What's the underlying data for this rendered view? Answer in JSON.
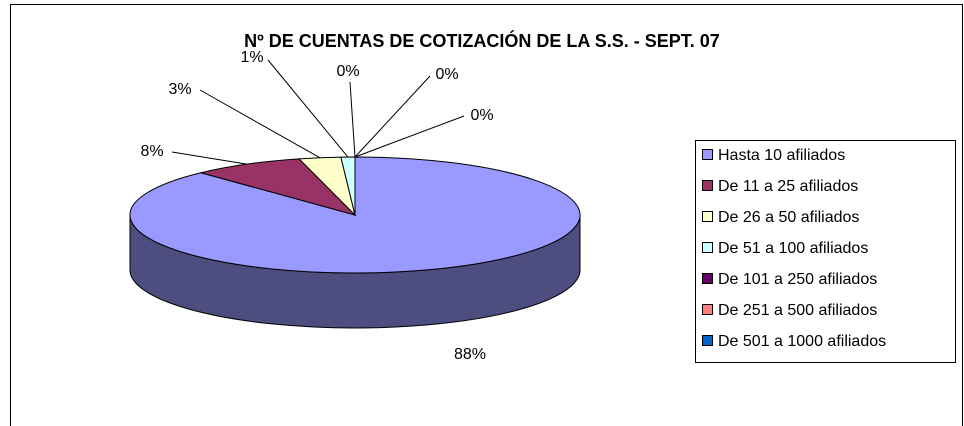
{
  "chart_data": {
    "type": "pie",
    "title": "Nº DE CUENTAS DE COTIZACIÓN DE LA S.S. - SEPT. 07",
    "categories": [
      "Hasta 10 afiliados",
      "De 11 a 25 afiliados",
      "De 26 a 50 afiliados",
      "De 51 a 100 afiliados",
      "De 101 a 250 afiliados",
      "De 251 a 500 afiliados",
      "De 501 a 1000 afiliados"
    ],
    "values": [
      88,
      8,
      3,
      1,
      0,
      0,
      0
    ],
    "value_labels": [
      "88%",
      "8%",
      "3%",
      "1%",
      "0%",
      "0%",
      "0%"
    ],
    "colors": [
      "#9999ff",
      "#993366",
      "#ffffcc",
      "#ccffff",
      "#660066",
      "#ff8080",
      "#0066cc"
    ],
    "legend": "right"
  }
}
